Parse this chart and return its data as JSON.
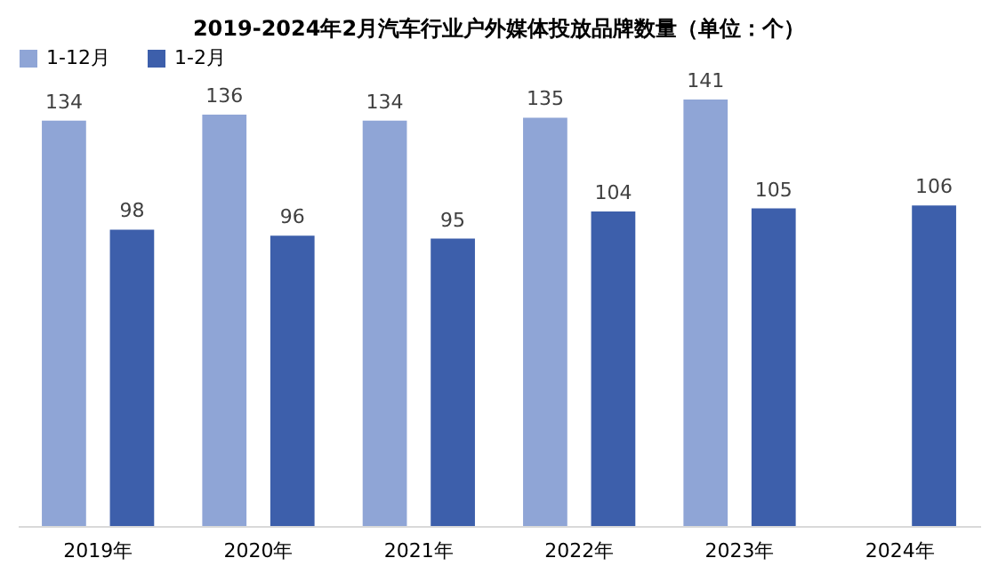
{
  "chart_data": {
    "type": "bar",
    "title": "2019-2024年2月汽车行业户外媒体投放品牌数量（单位：个）",
    "categories": [
      "2019年",
      "2020年",
      "2021年",
      "2022年",
      "2023年",
      "2024年"
    ],
    "series": [
      {
        "name": "1-12月",
        "color": "#8fa5d6",
        "values": [
          134,
          136,
          134,
          135,
          141,
          null
        ]
      },
      {
        "name": "1-2月",
        "color": "#3d5fab",
        "values": [
          98,
          96,
          95,
          104,
          105,
          106
        ]
      }
    ],
    "data_labels": true,
    "legend": "top",
    "grid": false
  }
}
